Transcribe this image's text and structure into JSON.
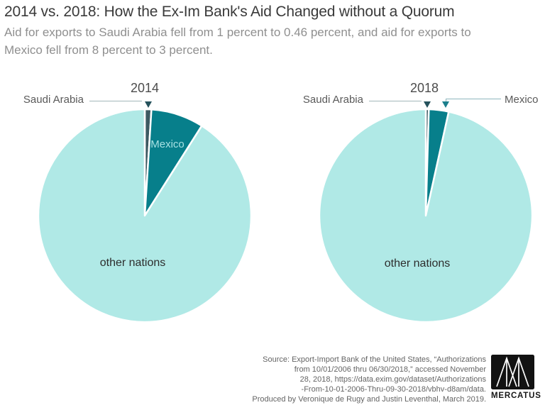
{
  "header": {
    "title": "2014 vs. 2018: How the Ex-Im Bank's Aid Changed without a Quorum",
    "subtitle_lines": [
      "Aid for exports to Saudi Arabia fell from 1 percent to 0.46 percent, and aid for exports to",
      "Mexico fell from 8 percent to 3 percent."
    ]
  },
  "colors": {
    "saudi_arabia_slice": "#3d5a62",
    "mexico_slice": "#077f8b",
    "other_nations_slice": "#b0e9e6",
    "saudi_arrow": "#25525c",
    "mexico_arrow": "#1b7f8c",
    "saudi_leader_line": "#a3b8ba",
    "mexico_leader_line": "#8fb6bd"
  },
  "chart_data": [
    {
      "type": "pie",
      "title": "2014",
      "start_angle_deg": 0,
      "direction": "clockwise",
      "slices": [
        {
          "label": "Saudi Arabia",
          "value": 1,
          "color": "#3d5a62"
        },
        {
          "label": "Mexico",
          "value": 8,
          "color": "#077f8b"
        },
        {
          "label": "other nations",
          "value": 91,
          "color": "#b0e9e6"
        }
      ],
      "labels": {
        "year": "2014",
        "saudi": "Saudi Arabia",
        "mexico": "Mexico",
        "other": "other nations"
      }
    },
    {
      "type": "pie",
      "title": "2018",
      "start_angle_deg": 0,
      "direction": "clockwise",
      "slices": [
        {
          "label": "Saudi Arabia",
          "value": 0.46,
          "color": "#3d5a62"
        },
        {
          "label": "Mexico",
          "value": 3,
          "color": "#077f8b"
        },
        {
          "label": "other nations",
          "value": 96.54,
          "color": "#b0e9e6"
        }
      ],
      "labels": {
        "year": "2018",
        "saudi": "Saudi Arabia",
        "mexico": "Mexico",
        "other": "other nations"
      }
    }
  ],
  "footer": {
    "source_lines": [
      "Source: Export-Import Bank of the United States, “Authorizations",
      "from 10/01/2006 thru 06/30/2018,” accessed November",
      "28, 2018, https://data.exim.gov/dataset/Authorizations",
      "-From-10-01-2006-Thru-09-30-2018/vbhv-d8am/data.",
      "Produced by Veronique de Rugy and Justin Leventhal, March 2019."
    ],
    "logo_text": "MERCATUS"
  }
}
